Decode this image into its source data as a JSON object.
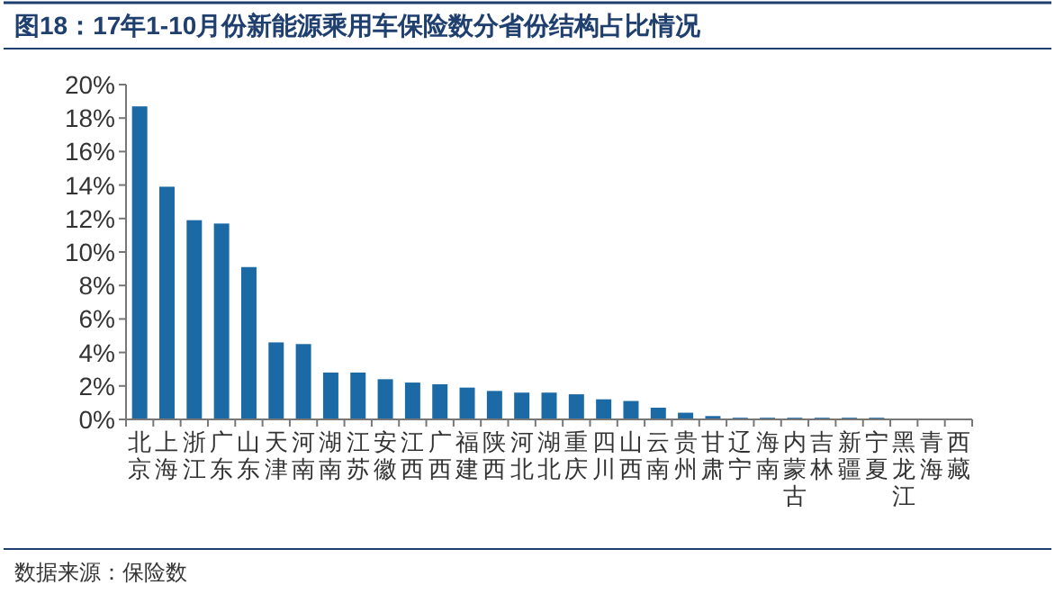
{
  "chart_data": {
    "type": "bar",
    "title": "图18：17年1-10月份新能源乘用车保险数分省份结构占比情况",
    "categories": [
      "北京",
      "上海",
      "浙江",
      "广东",
      "山东",
      "天津",
      "河南",
      "湖南",
      "江苏",
      "安徽",
      "江西",
      "广西",
      "福建",
      "陕西",
      "河北",
      "湖北",
      "重庆",
      "四川",
      "山西",
      "云南",
      "贵州",
      "甘肃",
      "辽宁",
      "海南",
      "内蒙古",
      "吉林",
      "新疆",
      "宁夏",
      "黑龙江",
      "青海",
      "西藏"
    ],
    "series": [
      {
        "color": "#1b6aa5",
        "values": [
          18.7,
          13.9,
          11.9,
          11.7,
          9.1,
          4.6,
          4.5,
          2.8,
          2.8,
          2.4,
          2.2,
          2.1,
          1.9,
          1.7,
          1.6,
          1.6,
          1.5,
          1.2,
          1.1,
          0.7,
          0.4,
          0.2,
          0.1,
          0.1,
          0.1,
          0.1,
          0.1,
          0.1,
          0,
          0,
          0
        ]
      }
    ],
    "ylim": [
      0,
      20
    ],
    "yticks": [
      {
        "value": 0,
        "label": "0%"
      },
      {
        "value": 2,
        "label": "2%"
      },
      {
        "value": 4,
        "label": "4%"
      },
      {
        "value": 6,
        "label": "6%"
      },
      {
        "value": 8,
        "label": "8%"
      },
      {
        "value": 10,
        "label": "10%"
      },
      {
        "value": 12,
        "label": "12%"
      },
      {
        "value": 14,
        "label": "14%"
      },
      {
        "value": 16,
        "label": "16%"
      },
      {
        "value": 18,
        "label": "18%"
      },
      {
        "value": 20,
        "label": "20%"
      }
    ],
    "grid": false,
    "annotations": [
      "数据来源：保险数"
    ]
  }
}
